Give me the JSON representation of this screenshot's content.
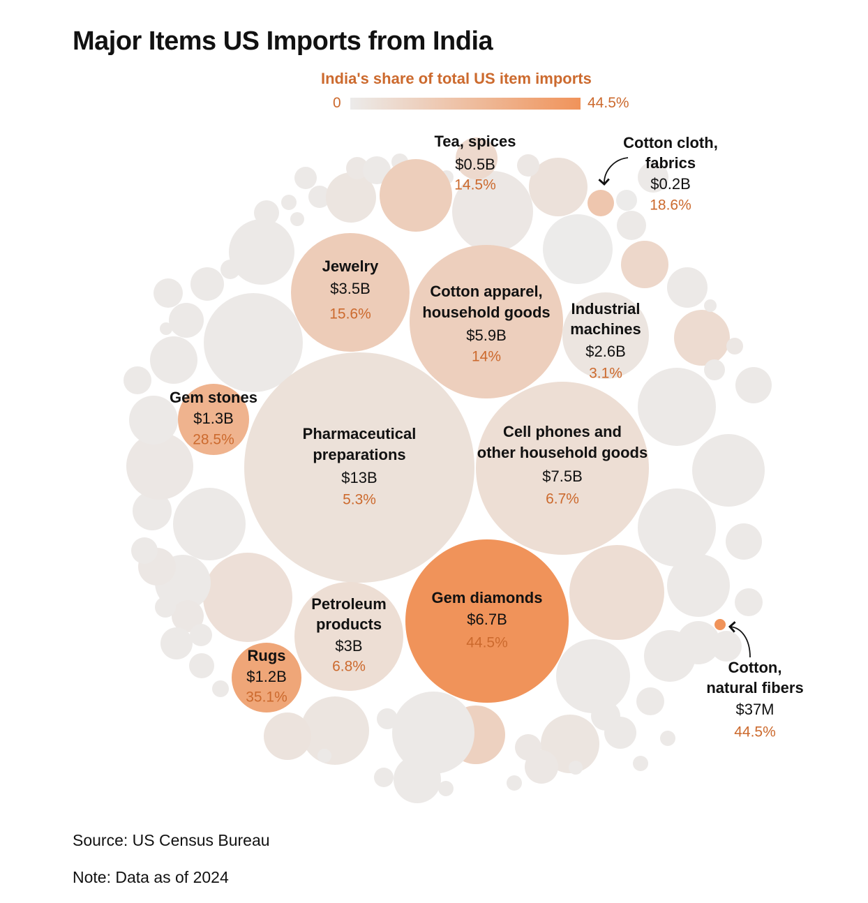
{
  "title": "Major Items US Imports from India",
  "legend": {
    "title": "India's share of total US item imports",
    "min_label": "0",
    "max_label": "44.5%",
    "color_low": "#ecebea",
    "color_high": "#f0935a"
  },
  "source": "Source: US Census Bureau",
  "note": "Note: Data as of 2024",
  "chart_data": {
    "type": "bubble",
    "size_measure": "US import value from India",
    "color_measure": "India's share of total US item imports (%)",
    "color_range": [
      0,
      44.5
    ],
    "labeled_items": [
      {
        "name_lines": [
          "Pharmaceutical",
          "preparations"
        ],
        "value_label": "$13B",
        "value_usd_b": 13,
        "share_label": "5.3%",
        "share": 5.3
      },
      {
        "name_lines": [
          "Cell phones and",
          "other household goods"
        ],
        "value_label": "$7.5B",
        "value_usd_b": 7.5,
        "share_label": "6.7%",
        "share": 6.7
      },
      {
        "name_lines": [
          "Gem diamonds"
        ],
        "value_label": "$6.7B",
        "value_usd_b": 6.7,
        "share_label": "44.5%",
        "share": 44.5
      },
      {
        "name_lines": [
          "Cotton apparel,",
          "household goods"
        ],
        "value_label": "$5.9B",
        "value_usd_b": 5.9,
        "share_label": "14%",
        "share": 14
      },
      {
        "name_lines": [
          "Jewelry"
        ],
        "value_label": "$3.5B",
        "value_usd_b": 3.5,
        "share_label": "15.6%",
        "share": 15.6
      },
      {
        "name_lines": [
          "Petroleum",
          "products"
        ],
        "value_label": "$3B",
        "value_usd_b": 3,
        "share_label": "6.8%",
        "share": 6.8
      },
      {
        "name_lines": [
          "Industrial",
          "machines"
        ],
        "value_label": "$2.6B",
        "value_usd_b": 2.6,
        "share_label": "3.1%",
        "share": 3.1
      },
      {
        "name_lines": [
          "Gem stones"
        ],
        "value_label": "$1.3B",
        "value_usd_b": 1.3,
        "share_label": "28.5%",
        "share": 28.5
      },
      {
        "name_lines": [
          "Rugs"
        ],
        "value_label": "$1.2B",
        "value_usd_b": 1.2,
        "share_label": "35.1%",
        "share": 35.1
      },
      {
        "name_lines": [
          "Tea, spices"
        ],
        "value_label": "$0.5B",
        "value_usd_b": 0.5,
        "share_label": "14.5%",
        "share": 14.5
      },
      {
        "name_lines": [
          "Cotton cloth,",
          "fabrics"
        ],
        "value_label": "$0.2B",
        "value_usd_b": 0.2,
        "share_label": "18.6%",
        "share": 18.6
      },
      {
        "name_lines": [
          "Cotton,",
          "natural fibers"
        ],
        "value_label": "$37M",
        "value_usd_b": 0.037,
        "share_label": "44.5%",
        "share": 44.5
      }
    ]
  }
}
